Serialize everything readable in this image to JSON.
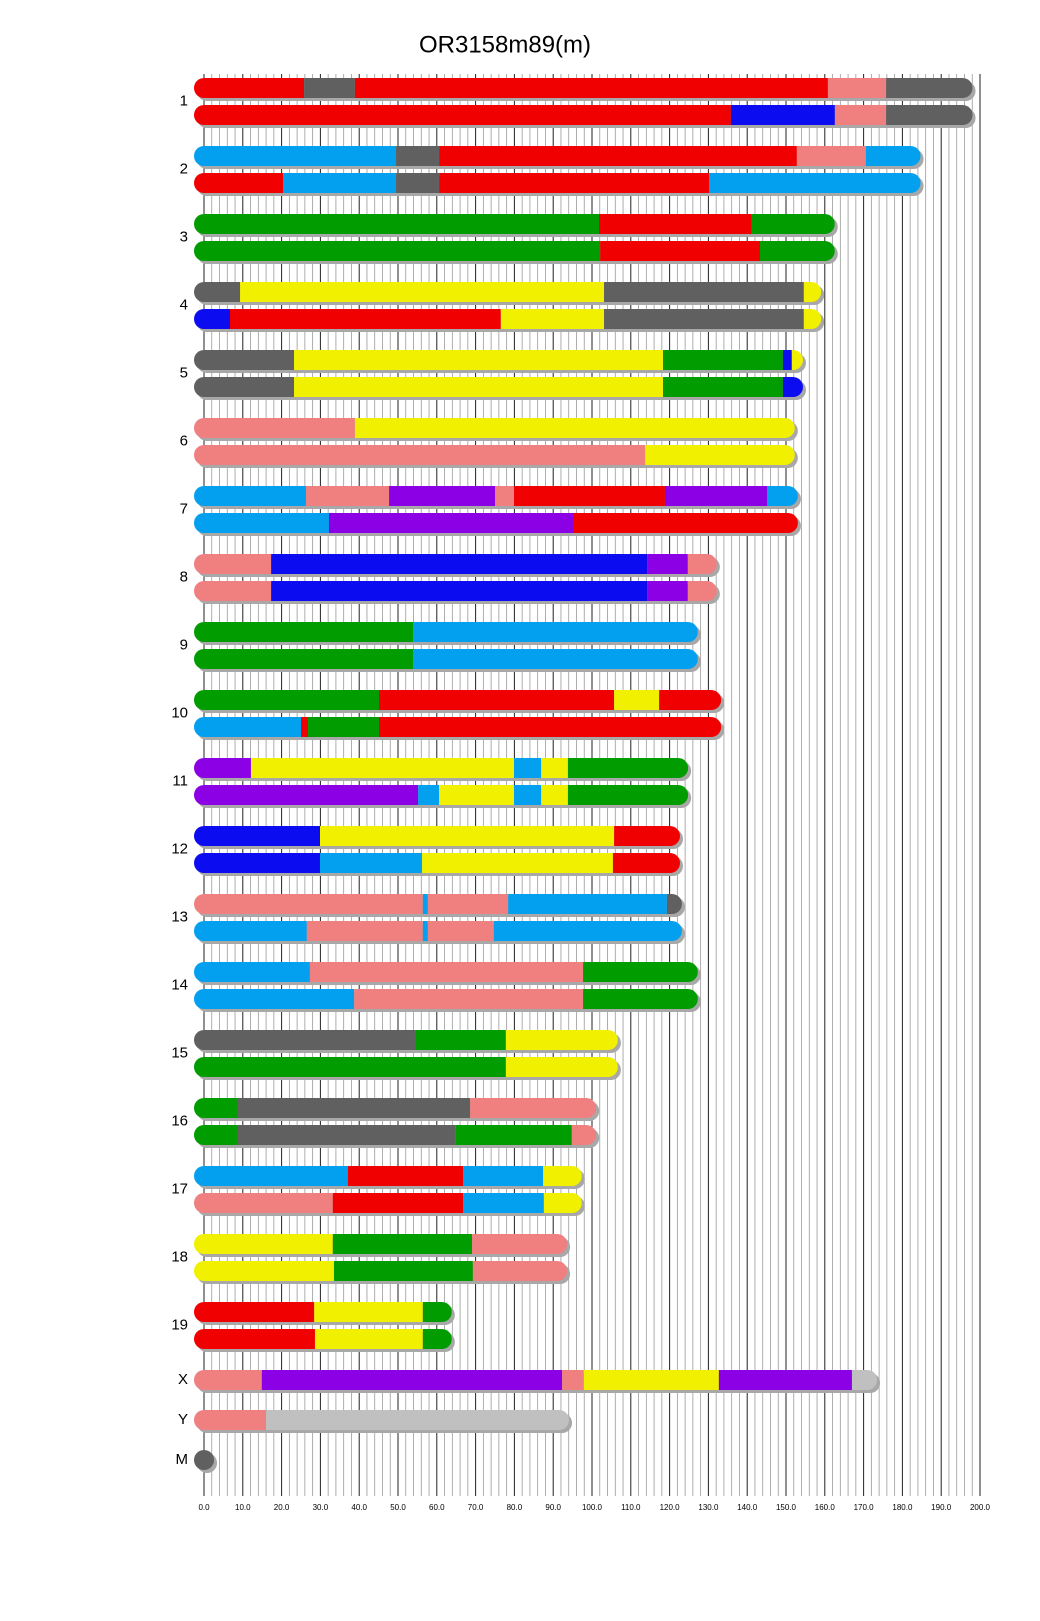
{
  "chart_data": {
    "type": "chromosome",
    "title": "OR3158m89(m)",
    "xlim": [
      0,
      200
    ],
    "xticks": [
      {
        "value": 0,
        "label": "0.0"
      },
      {
        "value": 10,
        "label": "10.0"
      },
      {
        "value": 20,
        "label": "20.0"
      },
      {
        "value": 30,
        "label": "30.0"
      },
      {
        "value": 40,
        "label": "40.0"
      },
      {
        "value": 50,
        "label": "50.0"
      },
      {
        "value": 60,
        "label": "60.0"
      },
      {
        "value": 70,
        "label": "70.0"
      },
      {
        "value": 80,
        "label": "80.0"
      },
      {
        "value": 90,
        "label": "90.0"
      },
      {
        "value": 100,
        "label": "100.0"
      },
      {
        "value": 110,
        "label": "110.0"
      },
      {
        "value": 120,
        "label": "120.0"
      },
      {
        "value": 130,
        "label": "130.0"
      },
      {
        "value": 140,
        "label": "140.0"
      },
      {
        "value": 150,
        "label": "150.0"
      },
      {
        "value": 160,
        "label": "160.0"
      },
      {
        "value": 170,
        "label": "170.0"
      },
      {
        "value": 180,
        "label": "180.0"
      },
      {
        "value": 190,
        "label": "190.0"
      },
      {
        "value": 200,
        "label": "200.0"
      }
    ],
    "xminorticks": [
      2,
      4,
      6,
      8,
      12,
      14,
      16,
      18,
      22,
      24,
      26,
      28,
      32,
      34,
      36,
      38,
      42,
      44,
      46,
      48,
      52,
      54,
      56,
      58,
      62,
      64,
      66,
      68,
      72,
      74,
      76,
      78,
      82,
      84,
      86,
      88,
      92,
      94,
      96,
      98,
      102,
      104,
      106,
      108,
      112,
      114,
      116,
      118,
      122,
      124,
      126,
      128,
      132,
      134,
      136,
      138,
      142,
      144,
      146,
      148,
      152,
      154,
      156,
      158,
      162,
      164,
      166,
      168,
      172,
      174,
      176,
      178,
      182,
      184,
      186,
      188,
      192,
      194,
      196,
      198
    ],
    "grid": true,
    "chromosomes": [
      {
        "name": "1",
        "tracks": [
          [
            {
              "end": 25.8,
              "color": "#f00000"
            },
            {
              "end": 38.9,
              "color": "#606060"
            },
            {
              "end": 160.8,
              "color": "#f00000"
            },
            {
              "end": 175.8,
              "color": "#f08080"
            },
            {
              "end": 195.5,
              "color": "#606060"
            }
          ],
          [
            {
              "end": 135.8,
              "color": "#f00000"
            },
            {
              "end": 162.6,
              "color": "#0c0cf0"
            },
            {
              "end": 175.8,
              "color": "#f08080"
            },
            {
              "end": 195.5,
              "color": "#606060"
            }
          ]
        ]
      },
      {
        "name": "2",
        "tracks": [
          [
            {
              "end": 49.5,
              "color": "#03a0f0"
            },
            {
              "end": 60.6,
              "color": "#606060"
            },
            {
              "end": 152.8,
              "color": "#f00000"
            },
            {
              "end": 170.6,
              "color": "#f08080"
            },
            {
              "end": 182.1,
              "color": "#03a0f0"
            }
          ],
          [
            {
              "end": 20.4,
              "color": "#f00000"
            },
            {
              "end": 49.5,
              "color": "#03a0f0"
            },
            {
              "end": 60.6,
              "color": "#606060"
            },
            {
              "end": 130.2,
              "color": "#f00000"
            },
            {
              "end": 182.1,
              "color": "#03a0f0"
            }
          ]
        ]
      },
      {
        "name": "3",
        "tracks": [
          [
            {
              "end": 101.8,
              "color": "#009c00"
            },
            {
              "end": 141.2,
              "color": "#f00000"
            },
            {
              "end": 160.0,
              "color": "#009c00"
            }
          ],
          [
            {
              "end": 102.1,
              "color": "#009c00"
            },
            {
              "end": 143.3,
              "color": "#f00000"
            },
            {
              "end": 160.0,
              "color": "#009c00"
            }
          ]
        ]
      },
      {
        "name": "4",
        "tracks": [
          [
            {
              "end": 9.3,
              "color": "#606060"
            },
            {
              "end": 103.1,
              "color": "#f0f000"
            },
            {
              "end": 154.6,
              "color": "#606060"
            },
            {
              "end": 156.5,
              "color": "#f0f000"
            }
          ],
          [
            {
              "end": 6.7,
              "color": "#0c0cf0"
            },
            {
              "end": 76.5,
              "color": "#f00000"
            },
            {
              "end": 103.1,
              "color": "#f0f000"
            },
            {
              "end": 154.6,
              "color": "#606060"
            },
            {
              "end": 156.5,
              "color": "#f0f000"
            }
          ]
        ]
      },
      {
        "name": "5",
        "tracks": [
          [
            {
              "end": 23.2,
              "color": "#606060"
            },
            {
              "end": 118.3,
              "color": "#f0f000"
            },
            {
              "end": 149.2,
              "color": "#009c00"
            },
            {
              "end": 151.5,
              "color": "#0c0cf0"
            },
            {
              "end": 151.8,
              "color": "#f0f000"
            }
          ],
          [
            {
              "end": 23.2,
              "color": "#606060"
            },
            {
              "end": 118.3,
              "color": "#f0f000"
            },
            {
              "end": 149.2,
              "color": "#009c00"
            },
            {
              "end": 151.8,
              "color": "#0c0cf0"
            }
          ]
        ]
      },
      {
        "name": "6",
        "tracks": [
          [
            {
              "end": 38.9,
              "color": "#f08080"
            },
            {
              "end": 149.7,
              "color": "#f0f000"
            }
          ],
          [
            {
              "end": 113.7,
              "color": "#f08080"
            },
            {
              "end": 149.7,
              "color": "#f0f000"
            }
          ]
        ]
      },
      {
        "name": "7",
        "tracks": [
          [
            {
              "end": 26.3,
              "color": "#03a0f0"
            },
            {
              "end": 47.7,
              "color": "#f08080"
            },
            {
              "end": 75.0,
              "color": "#8c00e6"
            },
            {
              "end": 79.9,
              "color": "#f08080"
            },
            {
              "end": 118.8,
              "color": "#f00000"
            },
            {
              "end": 145.1,
              "color": "#8c00e6"
            },
            {
              "end": 150.5,
              "color": "#03a0f0"
            }
          ],
          [
            {
              "end": 32.2,
              "color": "#03a0f0"
            },
            {
              "end": 95.1,
              "color": "#8c00e6"
            },
            {
              "end": 150.5,
              "color": "#f00000"
            }
          ]
        ]
      },
      {
        "name": "8",
        "tracks": [
          [
            {
              "end": 17.3,
              "color": "#f08080"
            },
            {
              "end": 114.2,
              "color": "#0c0cf0"
            },
            {
              "end": 124.7,
              "color": "#8c00e6"
            },
            {
              "end": 129.6,
              "color": "#f08080"
            }
          ],
          [
            {
              "end": 17.3,
              "color": "#f08080"
            },
            {
              "end": 114.2,
              "color": "#0c0cf0"
            },
            {
              "end": 124.7,
              "color": "#8c00e6"
            },
            {
              "end": 129.6,
              "color": "#f08080"
            }
          ]
        ]
      },
      {
        "name": "9",
        "tracks": [
          [
            {
              "end": 53.9,
              "color": "#009c00"
            },
            {
              "end": 124.7,
              "color": "#03a0f0"
            }
          ],
          [
            {
              "end": 53.9,
              "color": "#009c00"
            },
            {
              "end": 124.7,
              "color": "#03a0f0"
            }
          ]
        ]
      },
      {
        "name": "10",
        "tracks": [
          [
            {
              "end": 45.1,
              "color": "#009c00"
            },
            {
              "end": 105.7,
              "color": "#f00000"
            },
            {
              "end": 117.3,
              "color": "#f0f000"
            },
            {
              "end": 130.7,
              "color": "#f00000"
            }
          ],
          [
            {
              "end": 25.0,
              "color": "#03a0f0"
            },
            {
              "end": 26.8,
              "color": "#f00000"
            },
            {
              "end": 45.1,
              "color": "#009c00"
            },
            {
              "end": 130.7,
              "color": "#f00000"
            }
          ]
        ]
      },
      {
        "name": "11",
        "tracks": [
          [
            {
              "end": 12.1,
              "color": "#8c00e6"
            },
            {
              "end": 79.9,
              "color": "#f0f000"
            },
            {
              "end": 86.9,
              "color": "#03a0f0"
            },
            {
              "end": 93.8,
              "color": "#f0f000"
            },
            {
              "end": 122.2,
              "color": "#009c00"
            }
          ],
          [
            {
              "end": 55.2,
              "color": "#8c00e6"
            },
            {
              "end": 60.6,
              "color": "#03a0f0"
            },
            {
              "end": 79.9,
              "color": "#f0f000"
            },
            {
              "end": 86.9,
              "color": "#03a0f0"
            },
            {
              "end": 93.8,
              "color": "#f0f000"
            },
            {
              "end": 122.2,
              "color": "#009c00"
            }
          ]
        ]
      },
      {
        "name": "12",
        "tracks": [
          [
            {
              "end": 29.9,
              "color": "#0c0cf0"
            },
            {
              "end": 105.7,
              "color": "#f0f000"
            },
            {
              "end": 120.1,
              "color": "#f00000"
            }
          ],
          [
            {
              "end": 29.9,
              "color": "#0c0cf0"
            },
            {
              "end": 56.2,
              "color": "#03a0f0"
            },
            {
              "end": 105.4,
              "color": "#f0f000"
            },
            {
              "end": 120.1,
              "color": "#f00000"
            }
          ]
        ]
      },
      {
        "name": "13",
        "tracks": [
          [
            {
              "end": 56.4,
              "color": "#f08080"
            },
            {
              "end": 57.7,
              "color": "#03a0f0"
            },
            {
              "end": 78.4,
              "color": "#f08080"
            },
            {
              "end": 119.3,
              "color": "#03a0f0"
            },
            {
              "end": 120.6,
              "color": "#606060"
            }
          ],
          [
            {
              "end": 26.5,
              "color": "#03a0f0"
            },
            {
              "end": 56.4,
              "color": "#f08080"
            },
            {
              "end": 57.7,
              "color": "#03a0f0"
            },
            {
              "end": 74.7,
              "color": "#f08080"
            },
            {
              "end": 120.6,
              "color": "#03a0f0"
            }
          ]
        ]
      },
      {
        "name": "14",
        "tracks": [
          [
            {
              "end": 27.3,
              "color": "#03a0f0"
            },
            {
              "end": 97.7,
              "color": "#f08080"
            },
            {
              "end": 124.7,
              "color": "#009c00"
            }
          ],
          [
            {
              "end": 38.7,
              "color": "#03a0f0"
            },
            {
              "end": 97.7,
              "color": "#f08080"
            },
            {
              "end": 124.7,
              "color": "#009c00"
            }
          ]
        ]
      },
      {
        "name": "15",
        "tracks": [
          [
            {
              "end": 54.4,
              "color": "#606060"
            },
            {
              "end": 77.8,
              "color": "#009c00"
            },
            {
              "end": 104.1,
              "color": "#f0f000"
            }
          ],
          [
            {
              "end": 77.8,
              "color": "#009c00"
            },
            {
              "end": 104.1,
              "color": "#f0f000"
            }
          ]
        ]
      },
      {
        "name": "16",
        "tracks": [
          [
            {
              "end": 8.5,
              "color": "#009c00"
            },
            {
              "end": 68.6,
              "color": "#606060"
            },
            {
              "end": 98.5,
              "color": "#f08080"
            }
          ],
          [
            {
              "end": 8.5,
              "color": "#009c00"
            },
            {
              "end": 64.9,
              "color": "#606060"
            },
            {
              "end": 94.8,
              "color": "#009c00"
            },
            {
              "end": 98.5,
              "color": "#f08080"
            }
          ]
        ]
      },
      {
        "name": "17",
        "tracks": [
          [
            {
              "end": 37.1,
              "color": "#03a0f0"
            },
            {
              "end": 66.8,
              "color": "#f00000"
            },
            {
              "end": 87.4,
              "color": "#03a0f0"
            },
            {
              "end": 94.8,
              "color": "#f0f000"
            }
          ],
          [
            {
              "end": 33.2,
              "color": "#f08080"
            },
            {
              "end": 66.8,
              "color": "#f00000"
            },
            {
              "end": 87.6,
              "color": "#03a0f0"
            },
            {
              "end": 94.8,
              "color": "#f0f000"
            }
          ]
        ]
      },
      {
        "name": "18",
        "tracks": [
          [
            {
              "end": 33.2,
              "color": "#f0f000"
            },
            {
              "end": 69.1,
              "color": "#009c00"
            },
            {
              "end": 91.0,
              "color": "#f08080"
            }
          ],
          [
            {
              "end": 33.5,
              "color": "#f0f000"
            },
            {
              "end": 69.3,
              "color": "#009c00"
            },
            {
              "end": 91.0,
              "color": "#f08080"
            }
          ]
        ]
      },
      {
        "name": "19",
        "tracks": [
          [
            {
              "end": 28.4,
              "color": "#f00000"
            },
            {
              "end": 56.4,
              "color": "#f0f000"
            },
            {
              "end": 61.3,
              "color": "#009c00"
            }
          ],
          [
            {
              "end": 28.6,
              "color": "#f00000"
            },
            {
              "end": 56.4,
              "color": "#f0f000"
            },
            {
              "end": 61.3,
              "color": "#009c00"
            }
          ]
        ]
      },
      {
        "name": "X",
        "tracks": [
          [
            {
              "end": 14.9,
              "color": "#f08080"
            },
            {
              "end": 92.3,
              "color": "#8c00e6"
            },
            {
              "end": 97.9,
              "color": "#f08080"
            },
            {
              "end": 132.7,
              "color": "#f0f000"
            },
            {
              "end": 167.0,
              "color": "#8c00e6"
            },
            {
              "end": 170.9,
              "color": "#c0c0c0"
            }
          ]
        ]
      },
      {
        "name": "Y",
        "tracks": [
          [
            {
              "end": 16.0,
              "color": "#f08080"
            },
            {
              "end": 91.5,
              "color": "#c0c0c0"
            }
          ]
        ]
      },
      {
        "name": "M",
        "tracks": [
          [
            {
              "end": 0.016,
              "color": "#606060"
            }
          ]
        ]
      }
    ]
  }
}
